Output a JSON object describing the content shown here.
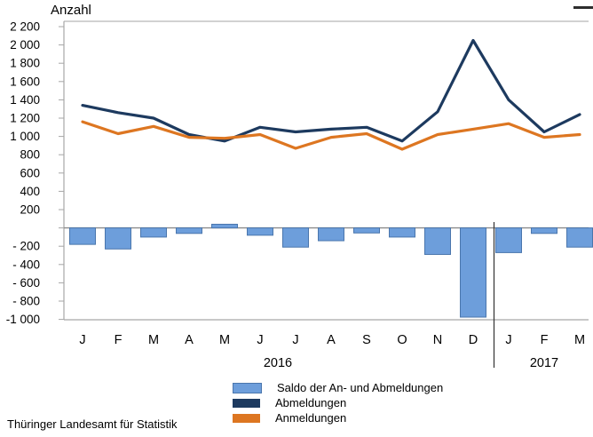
{
  "footer": {
    "source": "Thüringer Landesamt für Statistik"
  },
  "chart_data": {
    "type": "combo-bar-line",
    "title": "",
    "ylabel": "Anzahl",
    "xlabel": "",
    "ylim": [
      -1000,
      2200
    ],
    "ytick_interval": 200,
    "grid": false,
    "legend_position": "bottom-center",
    "y_tick_labels": [
      "2 200",
      "2 000",
      "1 800",
      "1 600",
      "1 400",
      "1 200",
      "1 000",
      "800",
      "600",
      "400",
      "200",
      "",
      "- 200",
      "- 400",
      "- 600",
      "- 800",
      "-1 000"
    ],
    "categories": [
      "J",
      "F",
      "M",
      "A",
      "M",
      "J",
      "J",
      "A",
      "S",
      "O",
      "N",
      "D",
      "J",
      "F",
      "M"
    ],
    "year_groups": [
      {
        "label": "2016",
        "start": 0,
        "end": 11
      },
      {
        "label": "2017",
        "start": 12,
        "end": 14
      }
    ],
    "series": [
      {
        "name": "Saldo der An- und Abmeldungen",
        "type": "bar",
        "color": "#6d9edb",
        "border_color": "#4a76ad",
        "values": [
          -180,
          -230,
          -100,
          -60,
          40,
          -80,
          -210,
          -140,
          -55,
          -100,
          -290,
          -975,
          -270,
          -60,
          -210
        ]
      },
      {
        "name": "Abmeldungen",
        "type": "line",
        "color": "#1d3a5f",
        "values": [
          1340,
          1260,
          1200,
          1020,
          950,
          1100,
          1050,
          1080,
          1100,
          950,
          1270,
          2050,
          1400,
          1050,
          1240
        ]
      },
      {
        "name": "Anmeldungen",
        "type": "line",
        "color": "#dd7621",
        "values": [
          1160,
          1030,
          1110,
          990,
          980,
          1020,
          870,
          990,
          1030,
          860,
          1020,
          1080,
          1140,
          990,
          1020
        ]
      }
    ]
  }
}
